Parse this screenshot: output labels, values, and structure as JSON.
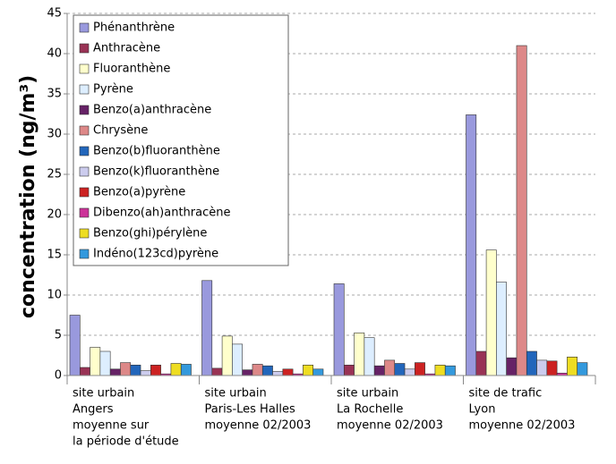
{
  "chart_data": {
    "type": "bar",
    "y_label": "concentration (ng/m³)",
    "categories": [
      [
        "site urbain",
        "Angers",
        "moyenne sur",
        "la période d'étude"
      ],
      [
        "site urbain",
        "Paris-Les Halles",
        "moyenne 02/2003"
      ],
      [
        "site urbain",
        "La Rochelle",
        "moyenne 02/2003"
      ],
      [
        "site de trafic",
        "Lyon",
        "moyenne 02/2003"
      ]
    ],
    "series": [
      {
        "name": "Phénanthrène",
        "color": "#9999dd",
        "values": [
          7.5,
          11.8,
          11.4,
          32.4
        ]
      },
      {
        "name": "Anthracène",
        "color": "#993355",
        "values": [
          1.0,
          0.9,
          1.3,
          3.0
        ]
      },
      {
        "name": "Fluoranthène",
        "color": "#ffffcc",
        "values": [
          3.5,
          4.9,
          5.3,
          15.6
        ]
      },
      {
        "name": "Pyrène",
        "color": "#ddeeff",
        "values": [
          3.0,
          3.9,
          4.7,
          11.6
        ]
      },
      {
        "name": "Benzo(a)anthracène",
        "color": "#662266",
        "values": [
          0.8,
          0.7,
          1.2,
          2.2
        ]
      },
      {
        "name": "Chrysène",
        "color": "#dd8888",
        "values": [
          1.6,
          1.4,
          1.9,
          41.0
        ]
      },
      {
        "name": "Benzo(b)fluoranthène",
        "color": "#2266bb",
        "values": [
          1.3,
          1.2,
          1.5,
          3.0
        ]
      },
      {
        "name": "Benzo(k)fluoranthène",
        "color": "#ccccee",
        "values": [
          0.6,
          0.5,
          0.8,
          1.9
        ]
      },
      {
        "name": "Benzo(a)pyrène",
        "color": "#cc2222",
        "values": [
          1.3,
          0.8,
          1.6,
          1.8
        ]
      },
      {
        "name": "Dibenzo(ah)anthracène",
        "color": "#cc3399",
        "values": [
          0.2,
          0.2,
          0.2,
          0.3
        ]
      },
      {
        "name": "Benzo(ghi)pérylène",
        "color": "#eedd22",
        "values": [
          1.5,
          1.3,
          1.3,
          2.3
        ]
      },
      {
        "name": "Indéno(123cd)pyrène",
        "color": "#3399dd",
        "values": [
          1.4,
          0.8,
          1.2,
          1.6
        ]
      }
    ],
    "ylim": [
      0,
      45
    ],
    "yticks": [
      0,
      5,
      10,
      15,
      20,
      25,
      30,
      35,
      40,
      45
    ],
    "grid": true
  }
}
